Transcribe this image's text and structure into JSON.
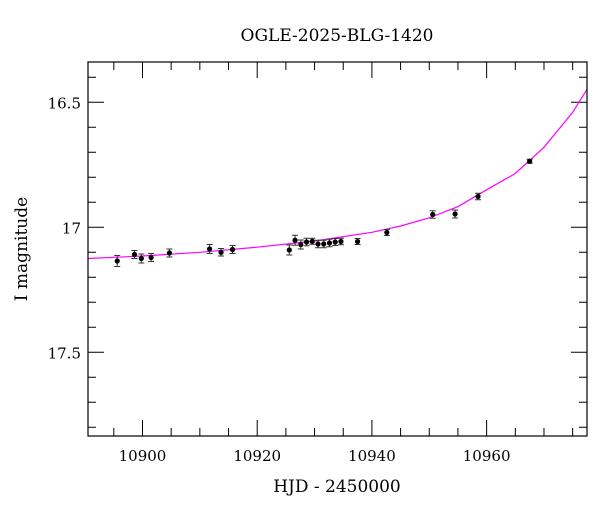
{
  "chart_data": {
    "type": "scatter",
    "title": "OGLE-2025-BLG-1420",
    "xlabel": "HJD - 2450000",
    "ylabel": "I magnitude",
    "xlim": [
      10890.5,
      10977.5
    ],
    "ylim": [
      17.835,
      16.339
    ],
    "y_inverted": true,
    "grid": false,
    "x_ticks": [
      10900,
      10920,
      10940,
      10960
    ],
    "x_tick_labels": [
      "10900",
      "10920",
      "10940",
      "10960"
    ],
    "x_minor_step": 5,
    "y_ticks": [
      16.5,
      17,
      17.5
    ],
    "y_tick_labels": [
      "16.5",
      "17",
      "17.5"
    ],
    "y_minor_step": 0.1,
    "colors": {
      "points": "#000000",
      "errorbars": "#333333",
      "model": "#ff00ff",
      "frame": "#000000"
    },
    "series": [
      {
        "kind": "points_with_errorbars",
        "x": [
          10895.6,
          10898.6,
          10899.8,
          10901.5,
          10904.7,
          10911.7,
          10913.7,
          10915.7,
          10925.6,
          10926.6,
          10927.6,
          10928.6,
          10929.6,
          10930.6,
          10931.6,
          10932.6,
          10933.6,
          10934.6,
          10937.5,
          10942.6,
          10950.6,
          10954.5,
          10958.5,
          10967.5
        ],
        "y": [
          17.135,
          17.109,
          17.125,
          17.121,
          17.103,
          17.087,
          17.1,
          17.089,
          17.091,
          17.052,
          17.069,
          17.059,
          17.056,
          17.067,
          17.067,
          17.063,
          17.059,
          17.057,
          17.057,
          17.021,
          16.949,
          16.947,
          16.877,
          16.736
        ],
        "yerr": [
          0.022,
          0.016,
          0.018,
          0.016,
          0.016,
          0.018,
          0.015,
          0.016,
          0.02,
          0.02,
          0.018,
          0.015,
          0.012,
          0.015,
          0.015,
          0.015,
          0.014,
          0.013,
          0.012,
          0.012,
          0.015,
          0.016,
          0.013,
          0.008
        ]
      },
      {
        "kind": "model_curve",
        "x": [
          10890.5,
          10900,
          10910,
          10920,
          10930,
          10940,
          10945,
          10950,
          10955,
          10960,
          10965,
          10970,
          10975,
          10977.5
        ],
        "y": [
          17.125,
          17.115,
          17.1,
          17.08,
          17.055,
          17.02,
          16.995,
          16.962,
          16.918,
          16.85,
          16.785,
          16.68,
          16.54,
          16.448
        ]
      }
    ]
  }
}
